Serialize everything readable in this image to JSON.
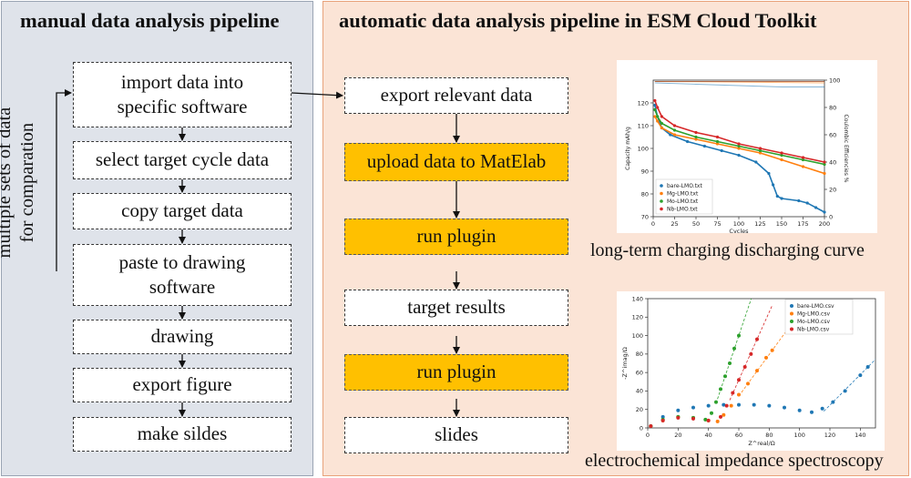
{
  "left": {
    "title": "manual data analysis pipeline",
    "side_label_1": "multiple sets of data",
    "side_label_2": "for comparation",
    "steps": [
      {
        "line1": "import data into",
        "line2": "specific software"
      },
      {
        "line1": "select target cycle data"
      },
      {
        "line1": "copy target data"
      },
      {
        "line1": "paste to drawing",
        "line2": "software"
      },
      {
        "line1": "drawing"
      },
      {
        "line1": "export figure"
      },
      {
        "line1": "make sildes"
      }
    ]
  },
  "right": {
    "title": "automatic data analysis pipeline in ESM Cloud Toolkit",
    "steps": [
      {
        "label": "export relevant data",
        "style": "white"
      },
      {
        "label": "upload data to MatElab",
        "style": "orange"
      },
      {
        "label": "run plugin",
        "style": "orange"
      },
      {
        "label": "target results",
        "style": "white"
      },
      {
        "label": "run plugin",
        "style": "orange"
      },
      {
        "label": "slides",
        "style": "white"
      }
    ],
    "caption_top": "long-term charging discharging curve",
    "caption_bottom": "electrochemical impedance spectroscopy"
  },
  "colors": {
    "blue": "#1f77b4",
    "orange": "#ff7f0e",
    "green": "#2ca02c",
    "red": "#d62728"
  },
  "chart_data": [
    {
      "type": "scatter",
      "title": "",
      "xlabel": "Cycles",
      "ylabel": "Capacity mAh/g",
      "y2label": "Coulombic Efficiencies %",
      "xlim": [
        0,
        200
      ],
      "ylim": [
        70,
        130
      ],
      "y2lim": [
        0,
        100
      ],
      "xticks": [
        "0",
        "25",
        "50",
        "75",
        "100",
        "125",
        "150",
        "175",
        "200"
      ],
      "yticks": [
        "70",
        "80",
        "90",
        "100",
        "110",
        "120"
      ],
      "y2ticks": [
        "0",
        "20",
        "40",
        "60",
        "80",
        "100"
      ],
      "legend_position": "bottom-left",
      "series": [
        {
          "name": "bare-LMO.txt",
          "color": "#1f77b4",
          "points": [
            [
              2,
              119
            ],
            [
              5,
              114
            ],
            [
              10,
              109
            ],
            [
              20,
              106
            ],
            [
              40,
              103
            ],
            [
              60,
              101
            ],
            [
              80,
              99
            ],
            [
              100,
              97
            ],
            [
              120,
              94
            ],
            [
              135,
              89
            ],
            [
              140,
              84
            ],
            [
              145,
              79
            ],
            [
              150,
              78
            ],
            [
              170,
              77
            ],
            [
              180,
              76
            ],
            [
              190,
              74
            ],
            [
              200,
              72
            ]
          ],
          "efficiency": [
            [
              2,
              98
            ],
            [
              50,
              97
            ],
            [
              100,
              96
            ],
            [
              150,
              95
            ],
            [
              200,
              95
            ]
          ]
        },
        {
          "name": "Mg-LMO.txt",
          "color": "#ff7f0e",
          "points": [
            [
              2,
              114
            ],
            [
              5,
              112
            ],
            [
              10,
              109
            ],
            [
              25,
              106
            ],
            [
              50,
              104
            ],
            [
              75,
              102
            ],
            [
              100,
              100
            ],
            [
              125,
              98
            ],
            [
              150,
              95
            ],
            [
              175,
              92
            ],
            [
              200,
              89
            ]
          ],
          "efficiency": [
            [
              2,
              99
            ],
            [
              200,
              98
            ]
          ]
        },
        {
          "name": "Mo-LMO.txt",
          "color": "#2ca02c",
          "points": [
            [
              2,
              117
            ],
            [
              5,
              114
            ],
            [
              10,
              111
            ],
            [
              25,
              108
            ],
            [
              50,
              105
            ],
            [
              75,
              103
            ],
            [
              100,
              101
            ],
            [
              125,
              99
            ],
            [
              150,
              97
            ],
            [
              175,
              95
            ],
            [
              200,
              93
            ]
          ],
          "efficiency": [
            [
              2,
              99
            ],
            [
              200,
              99
            ]
          ]
        },
        {
          "name": "Nb-LMO.txt",
          "color": "#d62728",
          "points": [
            [
              2,
              121
            ],
            [
              5,
              118
            ],
            [
              10,
              114
            ],
            [
              25,
              110
            ],
            [
              50,
              107
            ],
            [
              75,
              105
            ],
            [
              100,
              102
            ],
            [
              125,
              100
            ],
            [
              150,
              98
            ],
            [
              175,
              96
            ],
            [
              200,
              94
            ]
          ],
          "efficiency": [
            [
              2,
              99
            ],
            [
              200,
              99
            ]
          ]
        }
      ]
    },
    {
      "type": "scatter",
      "title": "",
      "xlabel": "Z^real/Ω",
      "ylabel": "-Z^imag/Ω",
      "xlim": [
        0,
        150
      ],
      "ylim": [
        0,
        140
      ],
      "xticks": [
        "0",
        "20",
        "40",
        "60",
        "80",
        "100",
        "120",
        "140"
      ],
      "yticks": [
        "0",
        "20",
        "40",
        "60",
        "80",
        "100",
        "120",
        "140"
      ],
      "legend_position": "top-right",
      "series": [
        {
          "name": "bare-LMO.csv",
          "color": "#1f77b4",
          "points": [
            [
              2,
              2
            ],
            [
              10,
              12
            ],
            [
              20,
              19
            ],
            [
              30,
              22
            ],
            [
              40,
              24
            ],
            [
              50,
              25
            ],
            [
              60,
              25
            ],
            [
              70,
              25
            ],
            [
              80,
              24
            ],
            [
              90,
              22
            ],
            [
              100,
              19
            ],
            [
              108,
              17
            ],
            [
              115,
              21
            ],
            [
              122,
              28
            ],
            [
              130,
              40
            ],
            [
              140,
              57
            ],
            [
              145,
              66
            ]
          ]
        },
        {
          "name": "Mg-LMO.csv",
          "color": "#ff7f0e",
          "points": [
            [
              2,
              2
            ],
            [
              10,
              8
            ],
            [
              20,
              12
            ],
            [
              30,
              11
            ],
            [
              40,
              8
            ],
            [
              46,
              7
            ],
            [
              50,
              14
            ],
            [
              55,
              24
            ],
            [
              60,
              36
            ],
            [
              66,
              48
            ],
            [
              72,
              62
            ],
            [
              78,
              76
            ],
            [
              82,
              84
            ]
          ]
        },
        {
          "name": "Mo-LMO.csv",
          "color": "#2ca02c",
          "points": [
            [
              2,
              2
            ],
            [
              10,
              9
            ],
            [
              20,
              12
            ],
            [
              30,
              11
            ],
            [
              38,
              9
            ],
            [
              42,
              16
            ],
            [
              45,
              28
            ],
            [
              48,
              42
            ],
            [
              51,
              56
            ],
            [
              54,
              70
            ],
            [
              57,
              86
            ],
            [
              60,
              100
            ]
          ]
        },
        {
          "name": "Nb-LMO.csv",
          "color": "#d62728",
          "points": [
            [
              2,
              2
            ],
            [
              10,
              8
            ],
            [
              20,
              11
            ],
            [
              30,
              10
            ],
            [
              40,
              8
            ],
            [
              48,
              12
            ],
            [
              52,
              24
            ],
            [
              56,
              38
            ],
            [
              60,
              52
            ],
            [
              64,
              66
            ],
            [
              68,
              80
            ],
            [
              72,
              96
            ]
          ]
        }
      ]
    }
  ]
}
